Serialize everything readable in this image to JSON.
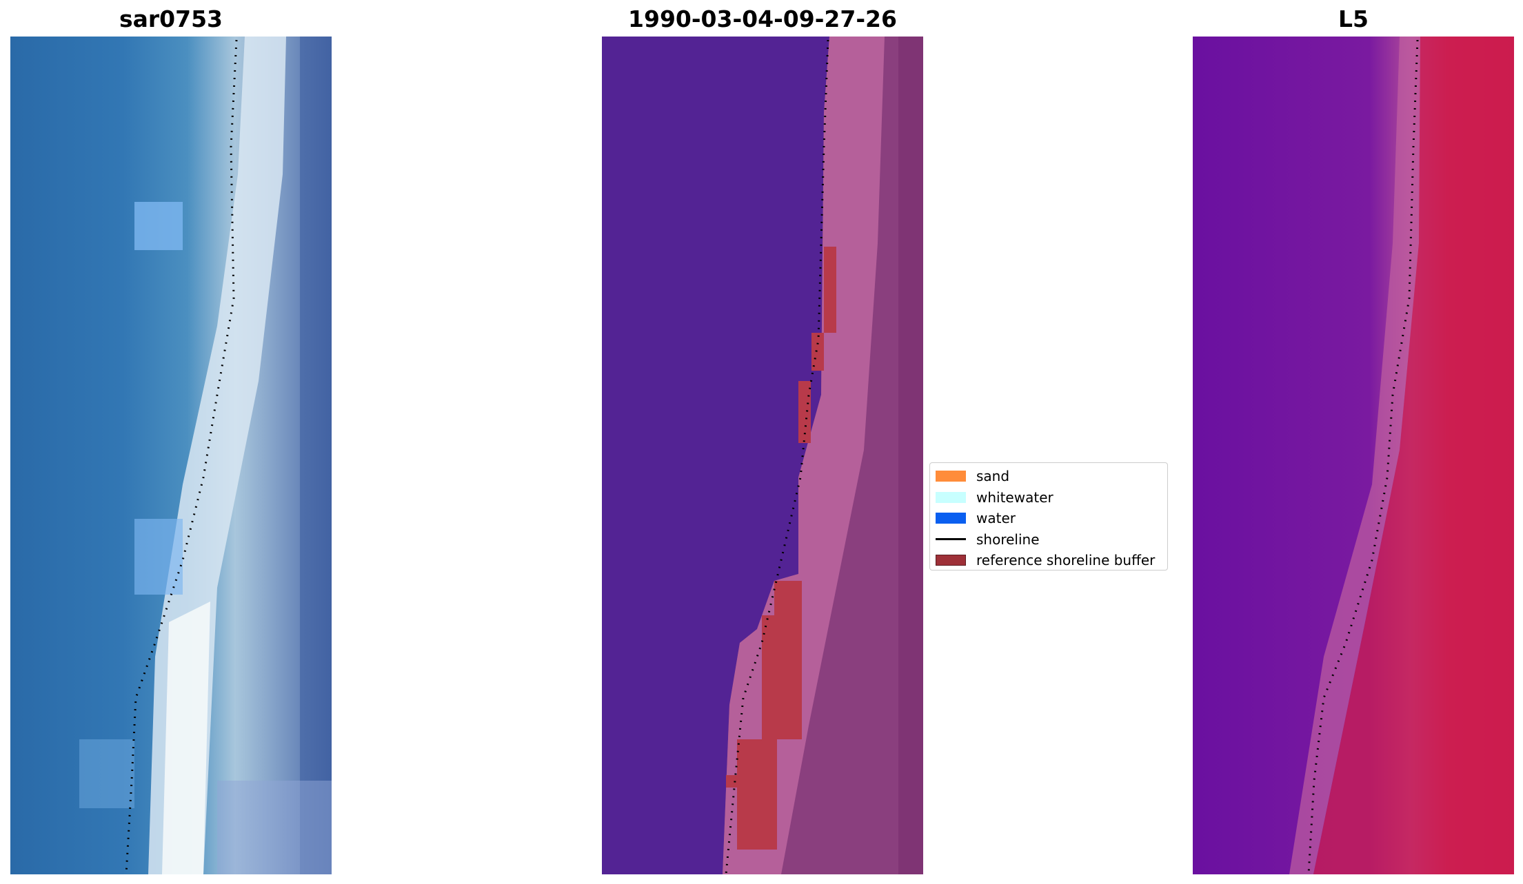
{
  "panels": [
    {
      "title": "sar0753"
    },
    {
      "title": "1990-03-04-09-27-26"
    },
    {
      "title": "L5"
    }
  ],
  "legend": {
    "items": [
      {
        "label": "sand",
        "color": "#ff8c3a",
        "kind": "patch"
      },
      {
        "label": "whitewater",
        "color": "#c8ffff",
        "kind": "patch"
      },
      {
        "label": "water",
        "color": "#0a5ff0",
        "kind": "patch"
      },
      {
        "label": "shoreline",
        "color": "#000000",
        "kind": "line"
      },
      {
        "label": "reference shoreline buffer",
        "color": "#9e3038",
        "kind": "patch"
      }
    ]
  }
}
